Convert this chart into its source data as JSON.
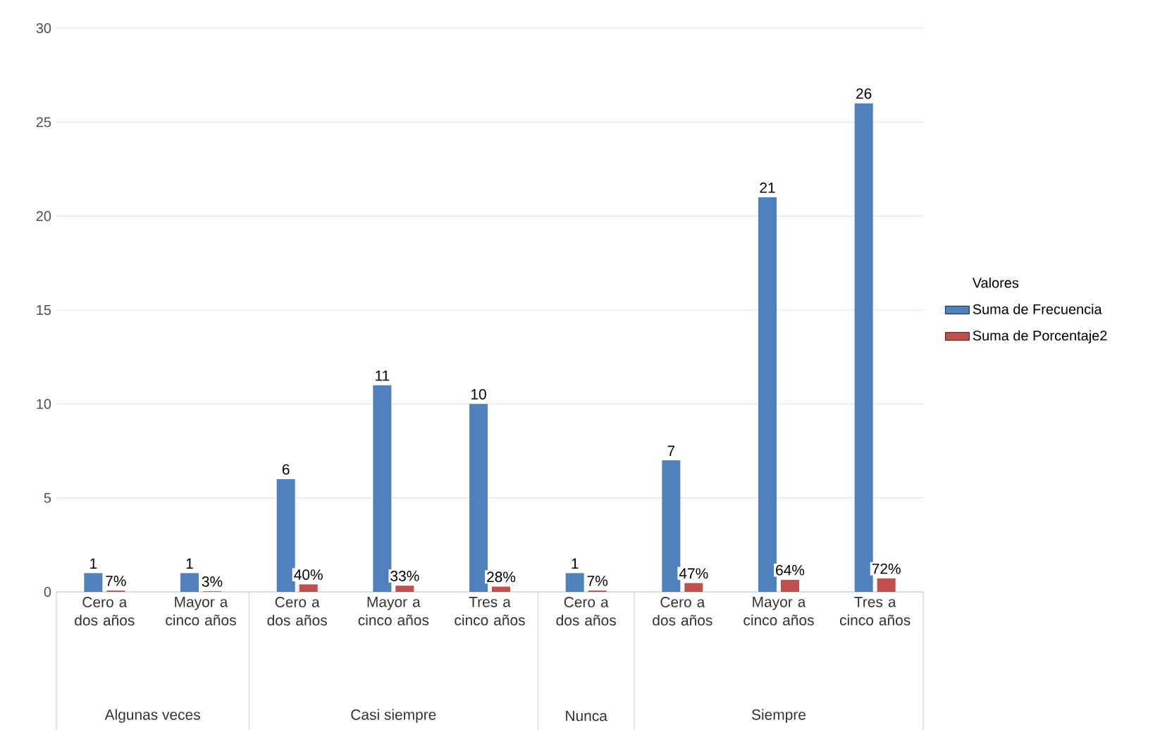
{
  "chart_data": {
    "type": "bar",
    "categories": [
      "Cero a dos años",
      "Mayor a cinco años",
      "Cero a dos años",
      "Mayor a cinco años",
      "Tres a cinco años",
      "Cero a dos años",
      "Cero a dos años",
      "Mayor a cinco años",
      "Tres a cinco años"
    ],
    "series": [
      {
        "name": "Suma de Frecuencia",
        "color": "#4f81bd",
        "values": [
          1,
          1,
          6,
          11,
          10,
          1,
          7,
          21,
          26
        ],
        "value_labels": [
          "1",
          "1",
          "6",
          "11",
          "10",
          "1",
          "7",
          "21",
          "26"
        ]
      },
      {
        "name": "Suma de Porcentaje2",
        "color": "#c0504d",
        "values": [
          0.07,
          0.03,
          0.4,
          0.33,
          0.28,
          0.07,
          0.47,
          0.64,
          0.72
        ],
        "value_labels": [
          "7%",
          "3%",
          "40%",
          "33%",
          "28%",
          "7%",
          "47%",
          "64%",
          "72%"
        ]
      }
    ],
    "annotations": [
      "Algunas veces",
      "Casi siempre",
      "Nunca",
      "Siempre"
    ],
    "legend_title": "Valores",
    "legend": "right",
    "grid": "y",
    "ylim": [
      0,
      30
    ],
    "yticks": [
      0,
      5,
      10,
      15,
      20,
      25,
      30
    ]
  }
}
